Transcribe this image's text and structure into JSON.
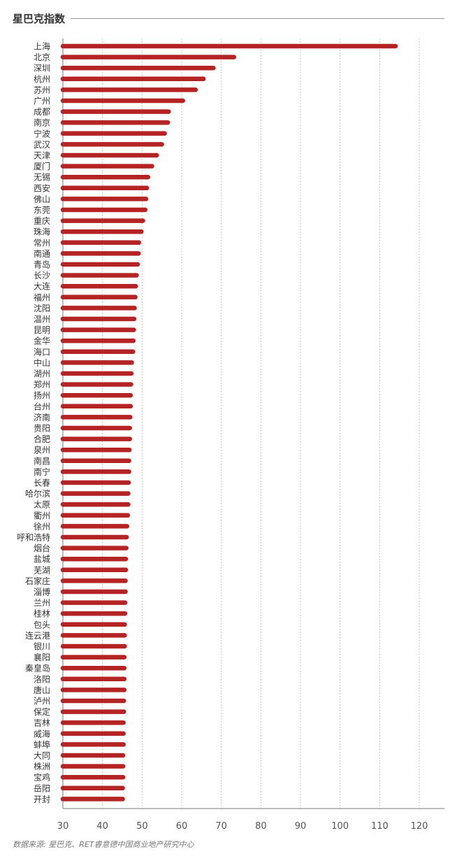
{
  "title": "星巴克指数",
  "source": "数据来源: 星巴克、RET睿意德中国商业地产研究中心",
  "colors": {
    "bar": "#b52424",
    "axis": "#7a7a7a",
    "grid": "#b8b8b8",
    "label": "#333333"
  },
  "chart_data": {
    "type": "bar",
    "orientation": "horizontal",
    "title": "星巴克指数",
    "xlabel": "",
    "ylabel": "",
    "xlim": [
      30,
      126
    ],
    "xticks": [
      30,
      40,
      50,
      60,
      70,
      80,
      90,
      100,
      110,
      120
    ],
    "grid": "vertical dotted",
    "legend": "none",
    "categories": [
      "上海",
      "北京",
      "深圳",
      "杭州",
      "苏州",
      "广州",
      "成都",
      "南京",
      "宁波",
      "武汉",
      "天津",
      "厦门",
      "无锡",
      "西安",
      "佛山",
      "东莞",
      "重庆",
      "珠海",
      "常州",
      "南通",
      "青岛",
      "长沙",
      "大连",
      "福州",
      "沈阳",
      "温州",
      "昆明",
      "金华",
      "海口",
      "中山",
      "湖州",
      "郑州",
      "扬州",
      "台州",
      "济南",
      "贵阳",
      "合肥",
      "泉州",
      "南昌",
      "南宁",
      "长春",
      "哈尔滨",
      "太原",
      "衢州",
      "徐州",
      "呼和浩特",
      "烟台",
      "盐城",
      "芜湖",
      "石家庄",
      "淄博",
      "兰州",
      "桂林",
      "包头",
      "连云港",
      "银川",
      "襄阳",
      "秦皇岛",
      "洛阳",
      "唐山",
      "泸州",
      "保定",
      "吉林",
      "威海",
      "蚌埠",
      "大同",
      "株洲",
      "宝鸡",
      "岳阳",
      "开封"
    ],
    "values": [
      114,
      73.2,
      68,
      65.5,
      63.5,
      60.3,
      56.7,
      56.5,
      55.7,
      55,
      53.7,
      52.5,
      51.5,
      51.2,
      51,
      50.8,
      50.2,
      49.8,
      49.2,
      49.1,
      48.9,
      48.6,
      48.4,
      48.3,
      48.1,
      48,
      47.9,
      47.8,
      47.7,
      47.4,
      47.3,
      47.2,
      47.1,
      47.1,
      47,
      46.9,
      46.9,
      46.8,
      46.7,
      46.7,
      46.6,
      46.5,
      46.5,
      46.4,
      46.2,
      46.1,
      46,
      45.9,
      45.9,
      45.8,
      45.8,
      45.7,
      45.7,
      45.6,
      45.6,
      45.6,
      45.5,
      45.5,
      45.5,
      45.5,
      45.4,
      45.4,
      45.3,
      45.3,
      45.3,
      45.2,
      45.2,
      45.2,
      45.1,
      45.1
    ]
  }
}
